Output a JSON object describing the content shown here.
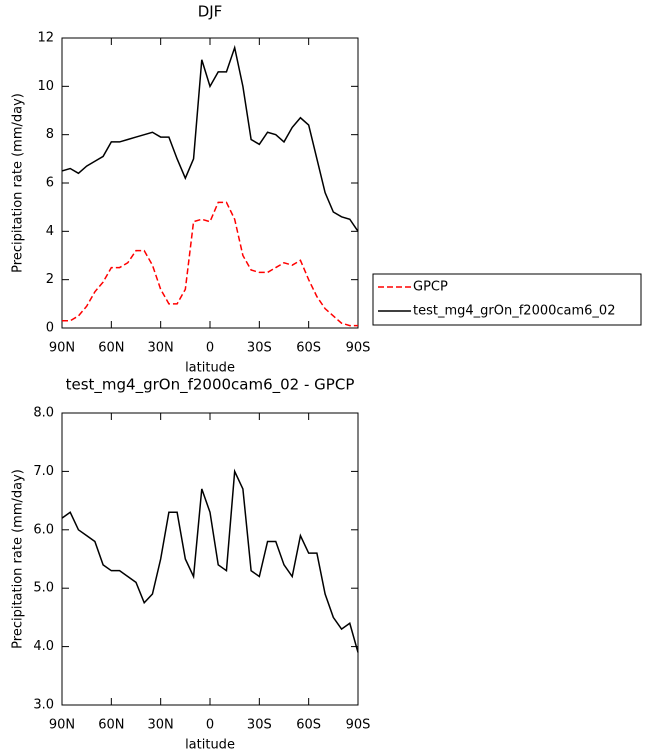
{
  "chart_data": [
    {
      "type": "line",
      "title": "DJF",
      "xlabel": "latitude",
      "ylabel": "Precipitation rate (mm/day)",
      "x": [
        90,
        85,
        80,
        75,
        70,
        65,
        60,
        55,
        50,
        45,
        40,
        35,
        30,
        25,
        20,
        15,
        10,
        5,
        0,
        -5,
        -10,
        -15,
        -20,
        -25,
        -30,
        -35,
        -40,
        -45,
        -50,
        -55,
        -60,
        -65,
        -70,
        -75,
        -80,
        -85,
        -90
      ],
      "series": [
        {
          "name": "GPCP",
          "color": "#ff0000",
          "line_style": "dashed",
          "values": [
            0.3,
            0.3,
            0.5,
            0.9,
            1.5,
            1.9,
            2.5,
            2.5,
            2.7,
            3.2,
            3.2,
            2.6,
            1.6,
            1.0,
            1.0,
            1.6,
            4.4,
            4.5,
            4.4,
            5.2,
            5.2,
            4.5,
            3.0,
            2.4,
            2.3,
            2.3,
            2.5,
            2.7,
            2.6,
            2.8,
            2.0,
            1.3,
            0.8,
            0.5,
            0.2,
            0.1,
            0.1
          ]
        },
        {
          "name": "test_mg4_grOn_f2000cam6_02",
          "color": "#000000",
          "line_style": "solid",
          "values": [
            6.5,
            6.6,
            6.4,
            6.7,
            6.9,
            7.1,
            7.7,
            7.7,
            7.8,
            7.9,
            8.0,
            8.1,
            7.9,
            7.9,
            7.0,
            6.2,
            7.0,
            11.1,
            10.0,
            10.6,
            10.6,
            11.6,
            10.0,
            7.8,
            7.6,
            8.1,
            8.0,
            7.7,
            8.3,
            8.7,
            8.4,
            7.0,
            5.6,
            4.8,
            4.6,
            4.5,
            4.0
          ]
        }
      ],
      "xlim": [
        90,
        -90
      ],
      "xticks": [
        {
          "value": 90,
          "label": "90N"
        },
        {
          "value": 60,
          "label": "60N"
        },
        {
          "value": 30,
          "label": "30N"
        },
        0,
        {
          "value": -30,
          "label": "30S"
        },
        {
          "value": -60,
          "label": "60S"
        },
        {
          "value": -90,
          "label": "90S"
        }
      ],
      "ylim": [
        0,
        12
      ],
      "yticks": [
        0,
        2,
        4,
        6,
        8,
        10,
        12
      ],
      "legend": true
    },
    {
      "type": "line",
      "title": "test_mg4_grOn_f2000cam6_02 - GPCP",
      "xlabel": "latitude",
      "ylabel": "Precipitation rate (mm/day)",
      "x": [
        90,
        85,
        80,
        75,
        70,
        65,
        60,
        55,
        50,
        45,
        40,
        35,
        30,
        25,
        20,
        15,
        10,
        5,
        0,
        -5,
        -10,
        -15,
        -20,
        -25,
        -30,
        -35,
        -40,
        -45,
        -50,
        -55,
        -60,
        -65,
        -70,
        -75,
        -80,
        -85,
        -90
      ],
      "series": [
        {
          "color": "#000000",
          "line_style": "solid",
          "values": [
            6.2,
            6.3,
            6.0,
            5.9,
            5.8,
            5.4,
            5.3,
            5.3,
            5.2,
            5.1,
            4.75,
            4.9,
            5.5,
            6.3,
            6.3,
            5.5,
            5.2,
            6.7,
            6.3,
            5.4,
            5.3,
            7.0,
            6.7,
            5.3,
            5.2,
            5.8,
            5.8,
            5.4,
            5.2,
            5.9,
            5.6,
            5.6,
            4.9,
            4.5,
            4.3,
            4.4,
            3.9
          ]
        }
      ],
      "xlim": [
        90,
        -90
      ],
      "xticks": [
        {
          "value": 90,
          "label": "90N"
        },
        {
          "value": 60,
          "label": "60N"
        },
        {
          "value": 30,
          "label": "30N"
        },
        0,
        {
          "value": -30,
          "label": "30S"
        },
        {
          "value": -60,
          "label": "60S"
        },
        {
          "value": -90,
          "label": "90S"
        }
      ],
      "ylim": [
        3,
        8
      ],
      "yticks": [
        {
          "value": 3,
          "label": "3.0"
        },
        {
          "value": 4,
          "label": "4.0"
        },
        {
          "value": 5,
          "label": "5.0"
        },
        {
          "value": 6,
          "label": "6.0"
        },
        {
          "value": 7,
          "label": "7.0"
        },
        {
          "value": 8,
          "label": "8.0"
        }
      ],
      "legend": false
    }
  ]
}
